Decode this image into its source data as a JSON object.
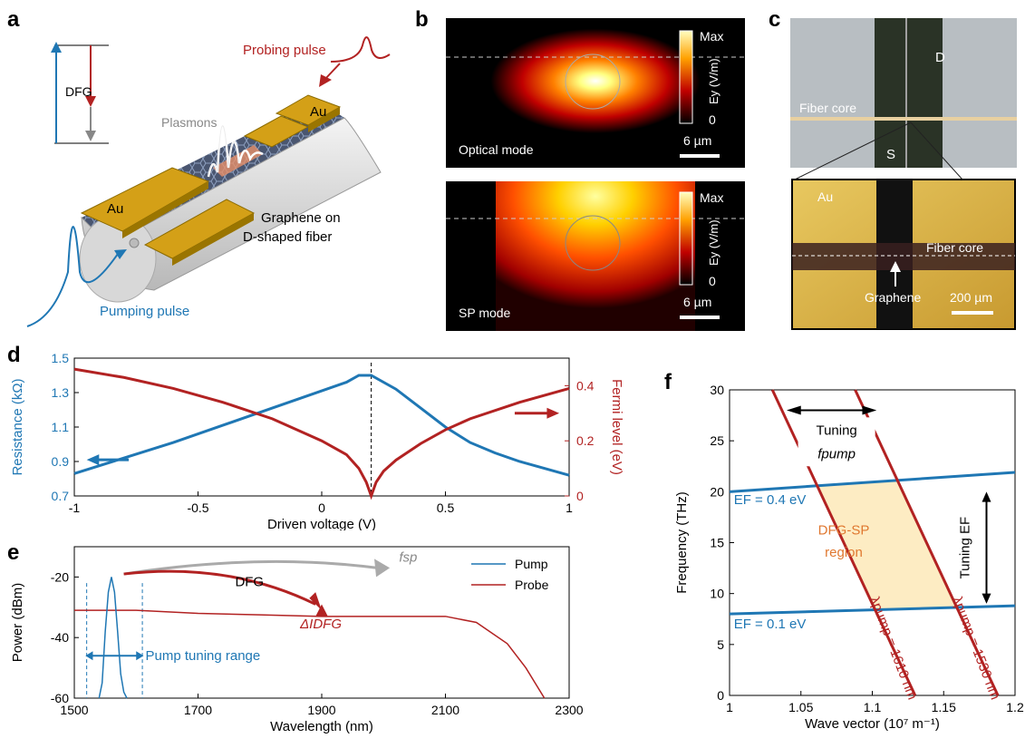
{
  "panels": {
    "a": {
      "label": "a",
      "dfg": "DFG",
      "plasmons": "Plasmons",
      "probing": "Probing pulse",
      "pumping": "Pumping pulse",
      "au1": "Au",
      "au2": "Au",
      "graphene1": "Graphene on",
      "graphene2": "D-shaped fiber",
      "colors": {
        "pump": "#1f77b4",
        "probe": "#b22222",
        "gold": "#d4a017"
      }
    },
    "b": {
      "label": "b",
      "top": {
        "title": "Optical mode",
        "cb_max": "Max",
        "cb_zero": "0",
        "cb_label": "Ey (V/m)",
        "scale": "6 µm"
      },
      "bottom": {
        "title": "SP mode",
        "cb_max": "Max",
        "cb_zero": "0",
        "cb_label": "Ey (V/m)",
        "scale": "6 µm"
      }
    },
    "c": {
      "label": "c",
      "top": {
        "fiber_core": "Fiber core",
        "d": "D",
        "s": "S"
      },
      "bottom": {
        "au": "Au",
        "fiber_core": "Fiber core",
        "graphene": "Graphene",
        "scale": "200 µm"
      }
    },
    "d": {
      "label": "d"
    },
    "e": {
      "label": "e",
      "dfg": "DFG",
      "fsp": "fsp",
      "delta": "ΔIDFG",
      "range": "Pump tuning range"
    },
    "f": {
      "label": "f",
      "ef04": "EF = 0.4 eV",
      "ef01": "EF = 0.1 eV",
      "region1": "DFG-SP",
      "region2": "region",
      "tuning1": "Tuning",
      "tuning2": "fpump",
      "tuningEF": "Tuning EF",
      "lam1": "λpump = 1610 nm",
      "lam2": "λpump = 1530 nm"
    }
  },
  "chart_data": [
    {
      "id": "d",
      "type": "line",
      "xlabel": "Driven voltage (V)",
      "ylabel": "Resistance (kΩ)",
      "y2label": "Fermi level (eV)",
      "xlim": [
        -1,
        1
      ],
      "ylim": [
        0.7,
        1.5
      ],
      "y2lim": [
        0,
        0.5
      ],
      "xticks": [
        "-1",
        "-0.5",
        "0",
        "0.5",
        "1"
      ],
      "yticks": [
        "0.7",
        "0.9",
        "1.1",
        "1.3",
        "1.5"
      ],
      "y2ticks": [
        "0",
        "0.2",
        "0.4"
      ],
      "dirac_voltage": 0.2,
      "series": [
        {
          "axis": "left",
          "color": "#1f77b4",
          "x": [
            -1,
            -0.8,
            -0.6,
            -0.4,
            -0.2,
            0,
            0.1,
            0.15,
            0.2,
            0.3,
            0.4,
            0.5,
            0.6,
            0.7,
            0.8,
            0.9,
            1.0
          ],
          "y": [
            0.83,
            0.92,
            1.01,
            1.11,
            1.21,
            1.31,
            1.36,
            1.4,
            1.4,
            1.32,
            1.21,
            1.1,
            1.01,
            0.95,
            0.9,
            0.86,
            0.82
          ]
        },
        {
          "axis": "right",
          "color": "#b22222",
          "x": [
            -1,
            -0.8,
            -0.6,
            -0.4,
            -0.2,
            0,
            0.1,
            0.15,
            0.18,
            0.2,
            0.22,
            0.25,
            0.3,
            0.4,
            0.5,
            0.6,
            0.8,
            1.0
          ],
          "y": [
            0.46,
            0.43,
            0.39,
            0.34,
            0.28,
            0.2,
            0.15,
            0.1,
            0.05,
            0.0,
            0.05,
            0.09,
            0.13,
            0.19,
            0.24,
            0.28,
            0.34,
            0.39
          ]
        }
      ]
    },
    {
      "id": "e",
      "type": "line",
      "xlabel": "Wavelength (nm)",
      "ylabel": "Power (dBm)",
      "xlim": [
        1500,
        2300
      ],
      "ylim": [
        -60,
        -10
      ],
      "xticks": [
        "1500",
        "1700",
        "1900",
        "2100",
        "2300"
      ],
      "yticks": [
        "-20",
        "-40",
        "-60"
      ],
      "series": [
        {
          "name": "Pump",
          "color": "#1f77b4",
          "x": [
            1540,
            1545,
            1550,
            1555,
            1560,
            1565,
            1570,
            1575,
            1580,
            1585
          ],
          "y": [
            -60,
            -55,
            -38,
            -25,
            -20,
            -25,
            -38,
            -52,
            -58,
            -60
          ]
        },
        {
          "name": "Probe",
          "color": "#b22222",
          "x": [
            1500,
            1600,
            1700,
            1800,
            1900,
            2000,
            2050,
            2100,
            2150,
            2200,
            2230,
            2260
          ],
          "y": [
            -31,
            -31,
            -32,
            -32.5,
            -33,
            -33,
            -33,
            -33,
            -35,
            -42,
            -50,
            -60
          ]
        }
      ],
      "tuning_lines": [
        1520,
        1610
      ]
    },
    {
      "id": "f",
      "type": "line",
      "xlabel": "Wave vector (10⁷ m⁻¹)",
      "ylabel": "Frequency (THz)",
      "xlim": [
        1,
        1.2
      ],
      "ylim": [
        0,
        30
      ],
      "xticks": [
        "1",
        "1.05",
        "1.1",
        "1.15",
        "1.2"
      ],
      "yticks": [
        "0",
        "5",
        "10",
        "15",
        "20",
        "25",
        "30"
      ],
      "series": [
        {
          "color": "#1f77b4",
          "x": [
            1,
            1.2
          ],
          "y": [
            20,
            21.9
          ]
        },
        {
          "color": "#1f77b4",
          "x": [
            1,
            1.2
          ],
          "y": [
            8,
            8.8
          ]
        },
        {
          "color": "#b22222",
          "x": [
            1.03,
            1.13
          ],
          "y": [
            30,
            0
          ]
        },
        {
          "color": "#b22222",
          "x": [
            1.088,
            1.188
          ],
          "y": [
            30,
            0
          ]
        }
      ]
    }
  ]
}
